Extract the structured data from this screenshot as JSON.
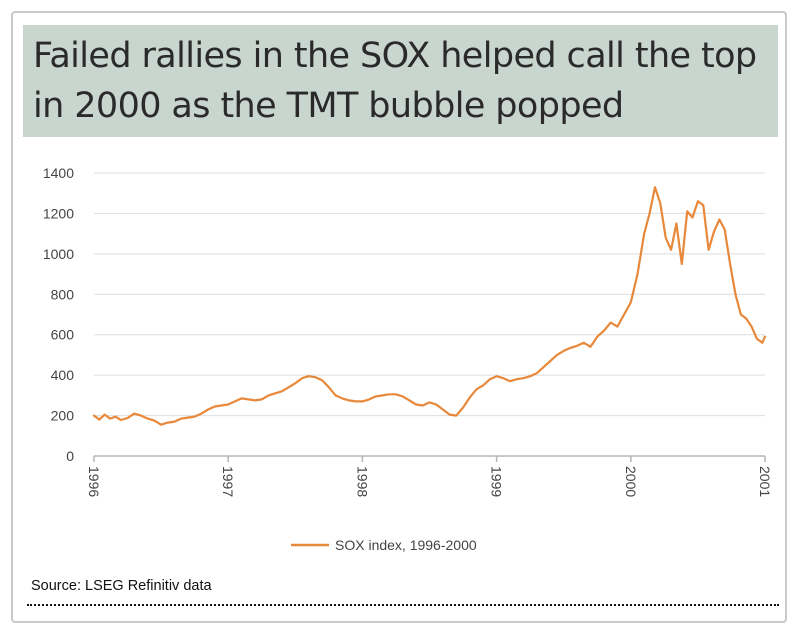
{
  "title": "Failed rallies in the SOX helped call the top in 2000 as the TMT bubble popped",
  "source": "Source: LSEG Refinitiv data",
  "colors": {
    "title_background": "#c9d6cf",
    "series": "#e8883a",
    "grid": "#dedede",
    "axis": "#b5b5b5",
    "text": "#444444"
  },
  "chart_data": {
    "type": "line",
    "title": "Failed rallies in the SOX helped call the top in 2000 as the TMT bubble popped",
    "xlabel": "",
    "ylabel": "",
    "ylim": [
      0,
      1400
    ],
    "yticks": [
      0,
      200,
      400,
      600,
      800,
      1000,
      1200,
      1400
    ],
    "xlim": [
      1996,
      2001
    ],
    "xticks": [
      "1996",
      "1997",
      "1998",
      "1999",
      "2000",
      "2001"
    ],
    "grid": "horizontal",
    "legend": "bottom-center",
    "series": [
      {
        "name": "SOX index, 1996-2000",
        "points": [
          [
            1996.0,
            200
          ],
          [
            1996.04,
            180
          ],
          [
            1996.08,
            205
          ],
          [
            1996.12,
            185
          ],
          [
            1996.16,
            195
          ],
          [
            1996.2,
            178
          ],
          [
            1996.25,
            188
          ],
          [
            1996.3,
            210
          ],
          [
            1996.35,
            200
          ],
          [
            1996.4,
            185
          ],
          [
            1996.45,
            175
          ],
          [
            1996.5,
            155
          ],
          [
            1996.55,
            165
          ],
          [
            1996.6,
            170
          ],
          [
            1996.65,
            185
          ],
          [
            1996.7,
            190
          ],
          [
            1996.75,
            195
          ],
          [
            1996.8,
            210
          ],
          [
            1996.85,
            230
          ],
          [
            1996.9,
            245
          ],
          [
            1996.95,
            250
          ],
          [
            1997.0,
            255
          ],
          [
            1997.05,
            270
          ],
          [
            1997.1,
            285
          ],
          [
            1997.15,
            280
          ],
          [
            1997.2,
            275
          ],
          [
            1997.25,
            280
          ],
          [
            1997.3,
            300
          ],
          [
            1997.35,
            310
          ],
          [
            1997.4,
            320
          ],
          [
            1997.45,
            340
          ],
          [
            1997.5,
            360
          ],
          [
            1997.55,
            385
          ],
          [
            1997.6,
            395
          ],
          [
            1997.65,
            390
          ],
          [
            1997.7,
            375
          ],
          [
            1997.75,
            340
          ],
          [
            1997.8,
            300
          ],
          [
            1997.85,
            285
          ],
          [
            1997.9,
            275
          ],
          [
            1997.95,
            270
          ],
          [
            1998.0,
            270
          ],
          [
            1998.05,
            280
          ],
          [
            1998.1,
            295
          ],
          [
            1998.15,
            300
          ],
          [
            1998.2,
            305
          ],
          [
            1998.25,
            305
          ],
          [
            1998.3,
            295
          ],
          [
            1998.35,
            275
          ],
          [
            1998.4,
            255
          ],
          [
            1998.45,
            250
          ],
          [
            1998.5,
            265
          ],
          [
            1998.55,
            255
          ],
          [
            1998.6,
            230
          ],
          [
            1998.65,
            205
          ],
          [
            1998.7,
            200
          ],
          [
            1998.75,
            240
          ],
          [
            1998.8,
            290
          ],
          [
            1998.85,
            330
          ],
          [
            1998.9,
            350
          ],
          [
            1998.95,
            380
          ],
          [
            1999.0,
            395
          ],
          [
            1999.05,
            385
          ],
          [
            1999.1,
            370
          ],
          [
            1999.15,
            380
          ],
          [
            1999.2,
            385
          ],
          [
            1999.25,
            395
          ],
          [
            1999.3,
            410
          ],
          [
            1999.35,
            440
          ],
          [
            1999.4,
            470
          ],
          [
            1999.45,
            500
          ],
          [
            1999.5,
            520
          ],
          [
            1999.55,
            535
          ],
          [
            1999.6,
            545
          ],
          [
            1999.65,
            560
          ],
          [
            1999.7,
            540
          ],
          [
            1999.75,
            590
          ],
          [
            1999.8,
            620
          ],
          [
            1999.85,
            660
          ],
          [
            1999.9,
            640
          ],
          [
            1999.95,
            700
          ],
          [
            2000.0,
            760
          ],
          [
            2000.05,
            900
          ],
          [
            2000.1,
            1100
          ],
          [
            2000.14,
            1200
          ],
          [
            2000.18,
            1330
          ],
          [
            2000.22,
            1250
          ],
          [
            2000.26,
            1080
          ],
          [
            2000.3,
            1020
          ],
          [
            2000.34,
            1150
          ],
          [
            2000.38,
            950
          ],
          [
            2000.42,
            1210
          ],
          [
            2000.46,
            1180
          ],
          [
            2000.5,
            1260
          ],
          [
            2000.54,
            1240
          ],
          [
            2000.58,
            1020
          ],
          [
            2000.62,
            1110
          ],
          [
            2000.66,
            1170
          ],
          [
            2000.7,
            1120
          ],
          [
            2000.74,
            950
          ],
          [
            2000.78,
            800
          ],
          [
            2000.82,
            700
          ],
          [
            2000.86,
            680
          ],
          [
            2000.9,
            640
          ],
          [
            2000.94,
            580
          ],
          [
            2000.98,
            560
          ],
          [
            2001.0,
            590
          ]
        ]
      }
    ]
  }
}
